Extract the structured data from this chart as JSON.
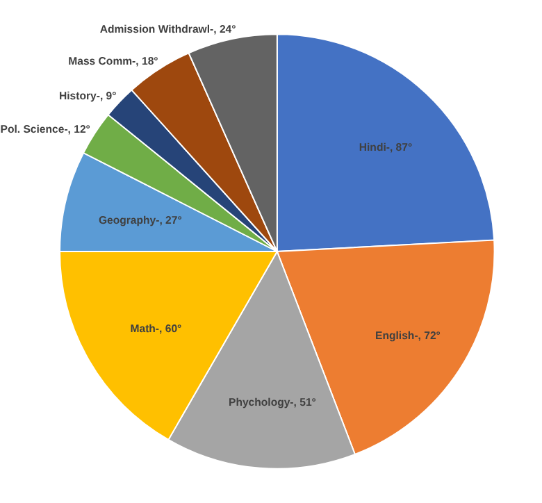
{
  "chart_data": {
    "type": "pie",
    "categories": [
      "Hindi-",
      "English-",
      "Phychology-",
      "Math-",
      "Geography-",
      "Pol. Science-",
      "History-",
      "Mass Comm-",
      "Admission Withdrawl-"
    ],
    "values": [
      87,
      72,
      51,
      60,
      27,
      12,
      9,
      18,
      24
    ],
    "value_labels": [
      "87°",
      "72°",
      "51°",
      "60°",
      "27°",
      "12°",
      "9°",
      "18°",
      "24°"
    ],
    "colors": [
      "#4472c4",
      "#ed7d31",
      "#a5a5a5",
      "#ffc000",
      "#5b9bd5",
      "#70ad47",
      "#264478",
      "#9e480e",
      "#636363"
    ]
  }
}
